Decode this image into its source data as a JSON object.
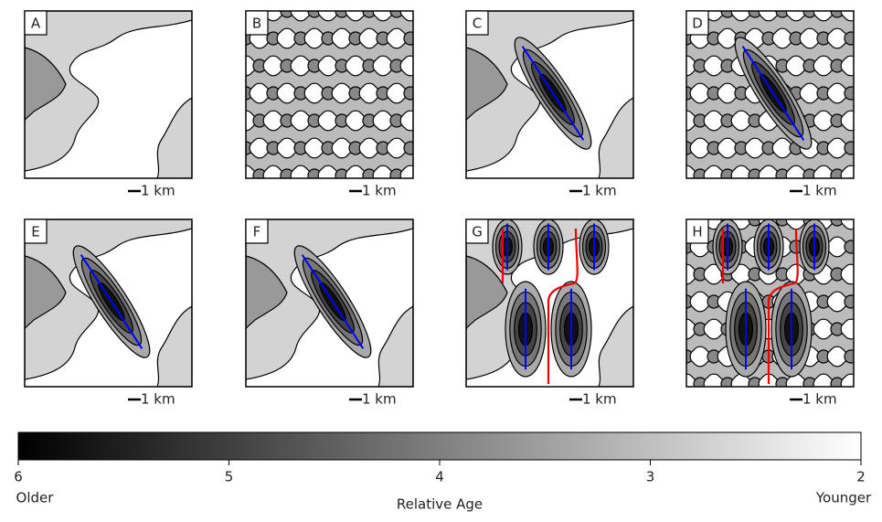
{
  "panels": [
    {
      "label": "A",
      "scale": "1 km"
    },
    {
      "label": "B",
      "scale": "1 km"
    },
    {
      "label": "C",
      "scale": "1 km"
    },
    {
      "label": "D",
      "scale": "1 km"
    },
    {
      "label": "E",
      "scale": "1 km"
    },
    {
      "label": "F",
      "scale": "1 km"
    },
    {
      "label": "G",
      "scale": "1 km"
    },
    {
      "label": "H",
      "scale": "1 km"
    }
  ],
  "colorbar": {
    "label": "Relative Age",
    "left_label": "Older",
    "right_label": "Younger",
    "xlim": [
      6,
      2
    ],
    "xticks": [
      6,
      5,
      4,
      3,
      2
    ]
  }
}
